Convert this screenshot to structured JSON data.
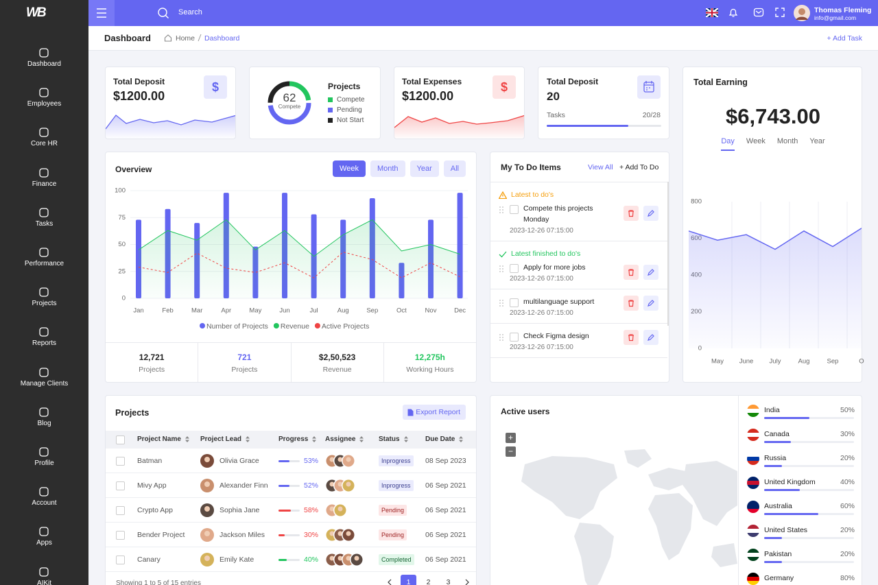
{
  "logo": "WB",
  "sidebar": [
    "Dashboard",
    "Employees",
    "Core HR",
    "Finance",
    "Tasks",
    "Performance",
    "Projects",
    "Reports",
    "Manage Clients",
    "Blog",
    "Profile",
    "Account",
    "Apps",
    "AIKit"
  ],
  "topbar": {
    "search": "Search",
    "user_name": "Thomas Fleming",
    "user_email": "info@gmail.com"
  },
  "header": {
    "title": "Dashboard",
    "breadcrumb": [
      "Home",
      "Dashboard"
    ],
    "action": "+ Add Task"
  },
  "deposit": {
    "title": "Total Deposit",
    "amount": "$1200.00",
    "icon": "$"
  },
  "projects_card": {
    "title": "Projects",
    "value": 62,
    "caption": "Compete",
    "legend": [
      {
        "name": "Compete",
        "color": "#22c55e"
      },
      {
        "name": "Pending",
        "color": "#6366f1"
      },
      {
        "name": "Not Start",
        "color": "#222222"
      }
    ]
  },
  "expenses": {
    "title": "Total Expenses",
    "amount": "$1200.00",
    "icon": "$"
  },
  "tasks_card": {
    "title": "Total Deposit",
    "amount": "20",
    "label": "Tasks",
    "done": 20,
    "total": 28,
    "ratio_label": "20/28"
  },
  "earning": {
    "title": "Total Earning",
    "amount": "$6,743.00",
    "tabs": [
      "Day",
      "Week",
      "Month",
      "Year"
    ]
  },
  "overview": {
    "title": "Overview",
    "tabs": [
      "Week",
      "Month",
      "Year",
      "All"
    ],
    "stats": [
      {
        "value": "12,721",
        "label": "Projects",
        "color": "#222222"
      },
      {
        "value": "721",
        "label": "Projects",
        "color": "#6366f1"
      },
      {
        "value": "$2,50,523",
        "label": "Revenue",
        "color": "#222222"
      },
      {
        "value": "12,275h",
        "label": "Working Hours",
        "color": "#22c55e"
      }
    ]
  },
  "chart_data": [
    {
      "type": "combo",
      "categories": [
        "Jan",
        "Feb",
        "Mar",
        "Apr",
        "May",
        "Jun",
        "Jul",
        "Aug",
        "Sep",
        "Oct",
        "Nov",
        "Dec"
      ],
      "ylim": [
        0,
        100
      ],
      "yticks": [
        0,
        25,
        50,
        75,
        100
      ],
      "grid": true,
      "series": [
        {
          "name": "Number of Projects",
          "type": "bar",
          "color": "#6366f1",
          "values": [
            73,
            83,
            70,
            98,
            48,
            98,
            78,
            73,
            93,
            33,
            73,
            98
          ]
        },
        {
          "name": "Revenue",
          "type": "area",
          "color": "#22c55e",
          "values": [
            45,
            63,
            54,
            73,
            45,
            63,
            39,
            59,
            73,
            44,
            50,
            41
          ]
        },
        {
          "name": "Active Projects",
          "type": "dashed",
          "color": "#ef4444",
          "values": [
            29,
            24,
            42,
            28,
            24,
            33,
            19,
            43,
            36,
            19,
            33,
            20
          ]
        }
      ]
    },
    {
      "type": "area",
      "categories": [
        null,
        "May",
        "June",
        "July",
        "Aug",
        "Sep",
        "O"
      ],
      "ylim": [
        0,
        800
      ],
      "yticks": [
        0,
        200,
        400,
        600,
        800
      ],
      "grid": "x",
      "color": "#6366f1",
      "values": [
        640,
        590,
        620,
        540,
        640,
        555,
        655
      ]
    }
  ],
  "todo": {
    "title": "My To Do Items",
    "view_all": "View All",
    "add": "+ Add To Do",
    "items": [
      {
        "heading": "Latest to do's",
        "heading_color": "#f59e0b",
        "text": "Compete this projects Monday",
        "date": "2023-12-26 07:15:00"
      },
      {
        "heading": "Latest finished to do's",
        "heading_color": "#22c55e",
        "text": "Apply for more jobs",
        "date": "2023-12-26 07:15:00"
      },
      {
        "text": "multilanguage support",
        "date": "2023-12-26 07:15:00"
      },
      {
        "text": "Check Figma design",
        "date": "2023-12-26 07:15:00"
      }
    ]
  },
  "projects_table": {
    "title": "Projects",
    "export": "Export Report",
    "columns": [
      "Project Name",
      "Project Lead",
      "Progress",
      "Assignee",
      "Status",
      "Due Date"
    ],
    "rows": [
      {
        "name": "Batman",
        "lead": "Olivia Grace",
        "progress": 53,
        "progress_label": "53%",
        "assignees": 3,
        "status": "Inprogress",
        "due": "08 Sep 2023",
        "color": "#6366f1"
      },
      {
        "name": "Mivy App",
        "lead": "Alexander Finn",
        "progress": 52,
        "progress_label": "52%",
        "assignees": 3,
        "status": "Inprogress",
        "due": "06 Sep 2021",
        "color": "#6366f1"
      },
      {
        "name": "Crypto App",
        "lead": "Sophia Jane",
        "progress": 58,
        "progress_label": "58%",
        "assignees": 2,
        "status": "Pending",
        "due": "06 Sep 2021",
        "color": "#ef4444"
      },
      {
        "name": "Bender Project",
        "lead": "Jackson Miles",
        "progress": 30,
        "progress_label": "30%",
        "assignees": 3,
        "status": "Pending",
        "due": "06 Sep 2021",
        "color": "#ef4444"
      },
      {
        "name": "Canary",
        "lead": "Emily Kate",
        "progress": 40,
        "progress_label": "40%",
        "assignees": 4,
        "status": "Completed",
        "due": "06 Sep 2021",
        "color": "#22c55e"
      }
    ],
    "footer": "Showing 1 to 5 of 15 entries",
    "pages": [
      1,
      2,
      3
    ]
  },
  "active_users": {
    "title": "Active users",
    "zoom": [
      "+",
      "−"
    ],
    "countries": [
      {
        "name": "India",
        "value": 50,
        "label": "50%",
        "flag": [
          "#ff9933",
          "#ffffff",
          "#138808"
        ]
      },
      {
        "name": "Canada",
        "value": 30,
        "label": "30%",
        "flag": [
          "#d52b1e",
          "#ffffff",
          "#d52b1e"
        ]
      },
      {
        "name": "Russia",
        "value": 20,
        "label": "20%",
        "flag": [
          "#ffffff",
          "#0039a6",
          "#d52b1e"
        ]
      },
      {
        "name": "United Kingdom",
        "value": 40,
        "label": "40%",
        "flag": [
          "#012169",
          "#c8102e",
          "#012169"
        ]
      },
      {
        "name": "Australia",
        "value": 60,
        "label": "60%",
        "flag": [
          "#012169",
          "#012169",
          "#e4002b"
        ]
      },
      {
        "name": "United States",
        "value": 20,
        "label": "20%",
        "flag": [
          "#b22234",
          "#ffffff",
          "#3c3b6e"
        ]
      },
      {
        "name": "Pakistan",
        "value": 20,
        "label": "20%",
        "flag": [
          "#01411c",
          "#ffffff",
          "#01411c"
        ]
      },
      {
        "name": "Germany",
        "value": 80,
        "label": "80%",
        "flag": [
          "#000000",
          "#dd0000",
          "#ffce00"
        ]
      }
    ]
  }
}
